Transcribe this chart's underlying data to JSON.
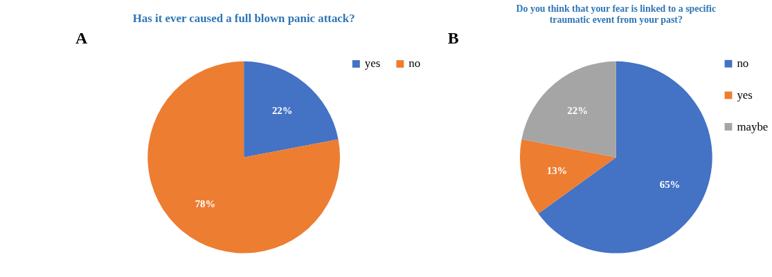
{
  "chart_data": [
    {
      "type": "pie",
      "title": "Has it ever caused a full blown panic attack?",
      "annotations": [
        "A"
      ],
      "categories": [
        "yes",
        "no"
      ],
      "values": [
        22,
        78
      ],
      "colors": [
        "#4472c4",
        "#ed7d31"
      ],
      "value_labels": [
        "22%",
        "78%"
      ],
      "legend": "right"
    },
    {
      "type": "pie",
      "title": "Do you think that your fear is linked to a specific\ntraumatic event from your past?",
      "annotations": [
        "B"
      ],
      "categories": [
        "no",
        "yes",
        "maybe"
      ],
      "values": [
        65,
        13,
        22
      ],
      "colors": [
        "#4472c4",
        "#ed7d31",
        "#a5a5a5"
      ],
      "value_labels": [
        "65%",
        "13%",
        "22%"
      ],
      "legend": "right"
    }
  ]
}
